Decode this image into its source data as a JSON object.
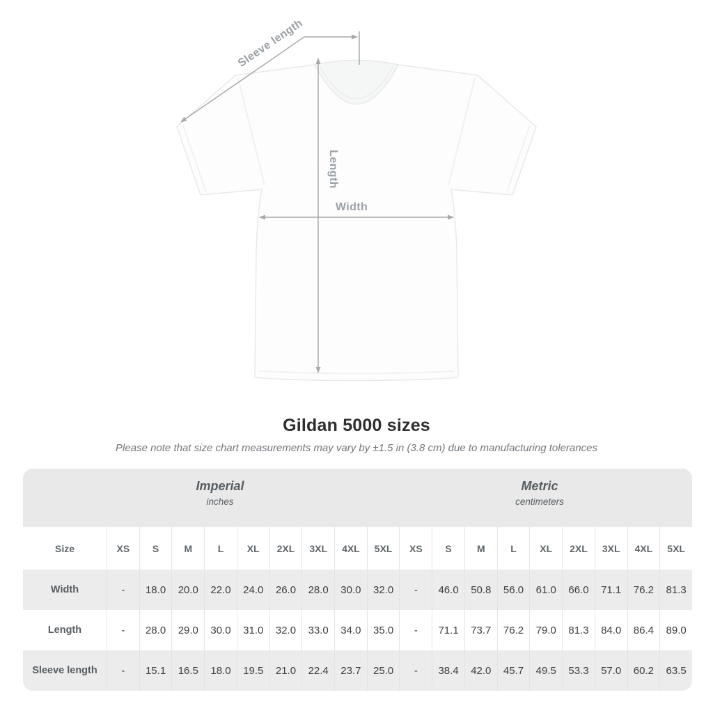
{
  "diagram": {
    "sleeve_label": "Sleeve length",
    "length_label": "Length",
    "width_label": "Width"
  },
  "title": "Gildan 5000 sizes",
  "subtitle": "Please note that size chart measurements may vary by ±1.5 in (3.8 cm) due to manufacturing tolerances",
  "table": {
    "groups": [
      {
        "label": "Imperial",
        "sublabel": "inches"
      },
      {
        "label": "Metric",
        "sublabel": "centimeters"
      }
    ],
    "size_header": "Size",
    "sizes": [
      "XS",
      "S",
      "M",
      "L",
      "XL",
      "2XL",
      "3XL",
      "4XL",
      "5XL"
    ],
    "rows": [
      {
        "label": "Width",
        "imperial": [
          "-",
          "18.0",
          "20.0",
          "22.0",
          "24.0",
          "26.0",
          "28.0",
          "30.0",
          "32.0"
        ],
        "metric": [
          "-",
          "46.0",
          "50.8",
          "56.0",
          "61.0",
          "66.0",
          "71.1",
          "76.2",
          "81.3"
        ]
      },
      {
        "label": "Length",
        "imperial": [
          "-",
          "28.0",
          "29.0",
          "30.0",
          "31.0",
          "32.0",
          "33.0",
          "34.0",
          "35.0"
        ],
        "metric": [
          "-",
          "71.1",
          "73.7",
          "76.2",
          "79.0",
          "81.3",
          "84.0",
          "86.4",
          "89.0"
        ]
      },
      {
        "label": "Sleeve length",
        "imperial": [
          "-",
          "15.1",
          "16.5",
          "18.0",
          "19.5",
          "21.0",
          "22.4",
          "23.7",
          "25.0"
        ],
        "metric": [
          "-",
          "38.4",
          "42.0",
          "45.7",
          "49.5",
          "53.3",
          "57.0",
          "60.2",
          "63.5"
        ]
      }
    ]
  },
  "colors": {
    "band_bg": "#e9e9e9",
    "stripe_bg": "#ececec",
    "divider": "#e4e4e4",
    "arrow": "#a6aaae",
    "title_text": "#2e2e2e",
    "muted_text": "#70757a"
  }
}
